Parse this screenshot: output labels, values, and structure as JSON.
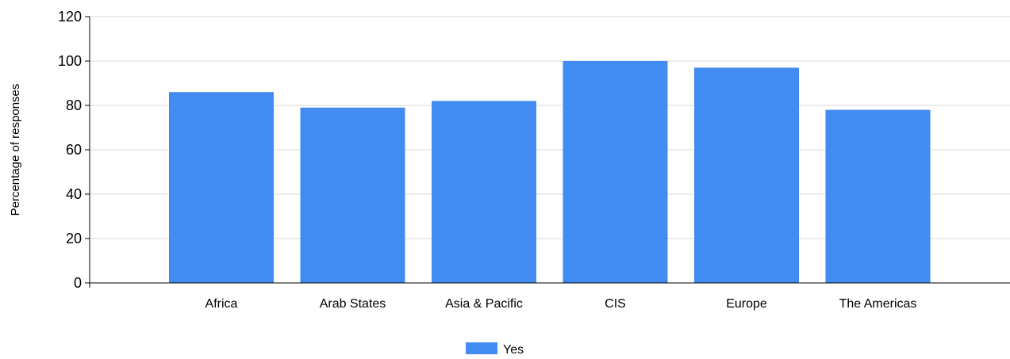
{
  "chart_data": {
    "type": "bar",
    "categories": [
      "Africa",
      "Arab States",
      "Asia & Pacific",
      "CIS",
      "Europe",
      "The Americas"
    ],
    "series": [
      {
        "name": "Yes",
        "values": [
          86,
          79,
          82,
          100,
          97,
          78
        ],
        "color": "#428bf0"
      }
    ],
    "title": "",
    "xlabel": "",
    "ylabel": "Percentage of responses",
    "ylim": [
      0,
      120
    ],
    "yticks": [
      0,
      20,
      40,
      60,
      80,
      100,
      120
    ],
    "grid": true,
    "legend_position": "bottom"
  }
}
